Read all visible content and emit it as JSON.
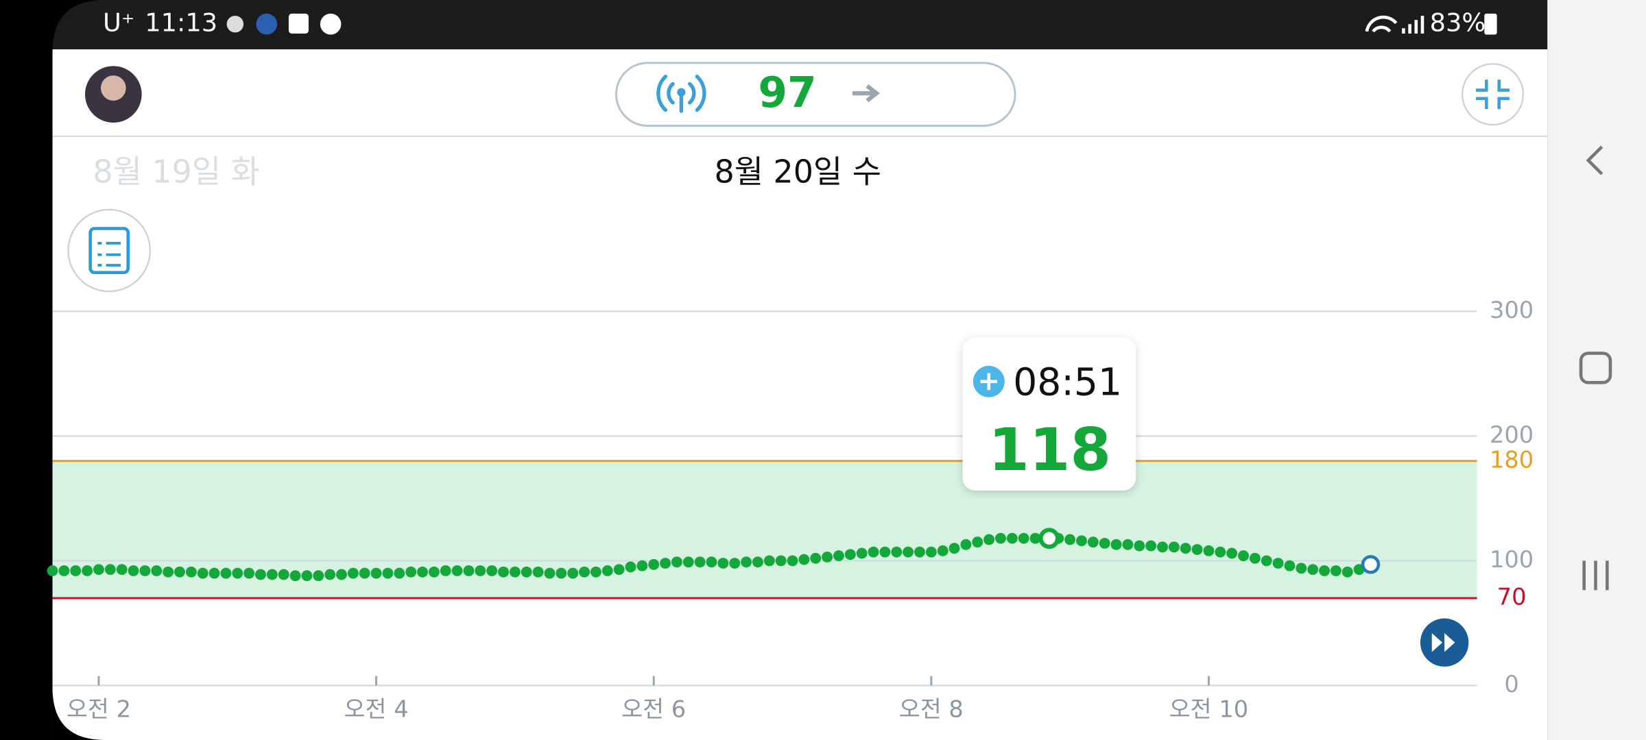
{
  "status_bar": {
    "carrier": "U⁺",
    "time": "11:13",
    "battery": "83%"
  },
  "header": {
    "current_value": 97,
    "previous_date": "8월 19일 화",
    "date": "8월 20일 수"
  },
  "chart_data": {
    "type": "scatter",
    "x": [
      100,
      105,
      110,
      115,
      120,
      125,
      130,
      135,
      140,
      145,
      150,
      155,
      160,
      165,
      170,
      175,
      180,
      185,
      190,
      195,
      200,
      205,
      210,
      215,
      220,
      225,
      230,
      235,
      240,
      245,
      250,
      255,
      260,
      265,
      270,
      275,
      280,
      285,
      290,
      295,
      300,
      305,
      310,
      315,
      320,
      325,
      330,
      335,
      340,
      345,
      350,
      355,
      360,
      365,
      370,
      375,
      380,
      385,
      390,
      395,
      400,
      405,
      410,
      415,
      420,
      425,
      430,
      435,
      440,
      445,
      450,
      455,
      460,
      465,
      470,
      475,
      480,
      485,
      490,
      495,
      500,
      505,
      510,
      515,
      520,
      525,
      530,
      535,
      540,
      545,
      550,
      555,
      560,
      565,
      570,
      575,
      580,
      585,
      590,
      595,
      600,
      605,
      610,
      615,
      620,
      625,
      630,
      635,
      640,
      645,
      650,
      655,
      660,
      665,
      670
    ],
    "series": [
      {
        "color": "#14a83b",
        "values": [
          92,
          92,
          92,
          92,
          93,
          93,
          93,
          92,
          92,
          92,
          91,
          91,
          91,
          90,
          90,
          90,
          90,
          90,
          89,
          89,
          89,
          88,
          88,
          88,
          89,
          89,
          90,
          90,
          90,
          90,
          90,
          91,
          91,
          91,
          92,
          92,
          92,
          92,
          92,
          91,
          91,
          91,
          91,
          90,
          90,
          90,
          91,
          91,
          92,
          93,
          95,
          96,
          97,
          98,
          99,
          99,
          99,
          99,
          98,
          98,
          99,
          99,
          100,
          100,
          100,
          101,
          102,
          103,
          104,
          105,
          106,
          107,
          107,
          107,
          107,
          107,
          107,
          108,
          110,
          113,
          115,
          117,
          118,
          118,
          118,
          118,
          118,
          118,
          117,
          116,
          115,
          114,
          113,
          113,
          112,
          112,
          111,
          111,
          110,
          109,
          108,
          107,
          106,
          104,
          102,
          100,
          98,
          96,
          94,
          93,
          92,
          92,
          91,
          93,
          97
        ]
      }
    ],
    "xlim": [
      100,
      716
    ],
    "xticks": [
      {
        "value": 120,
        "label": "오전 2"
      },
      {
        "value": 240,
        "label": "오전 4"
      },
      {
        "value": 360,
        "label": "오전 6"
      },
      {
        "value": 480,
        "label": "오전 8"
      },
      {
        "value": 600,
        "label": "오전 10"
      }
    ],
    "ylim": [
      0,
      300
    ],
    "yticks": [
      0,
      100,
      200,
      300
    ],
    "grid": true,
    "target_range": [
      70,
      180
    ],
    "tooltip": {
      "time": "08:51",
      "value": 118
    }
  }
}
